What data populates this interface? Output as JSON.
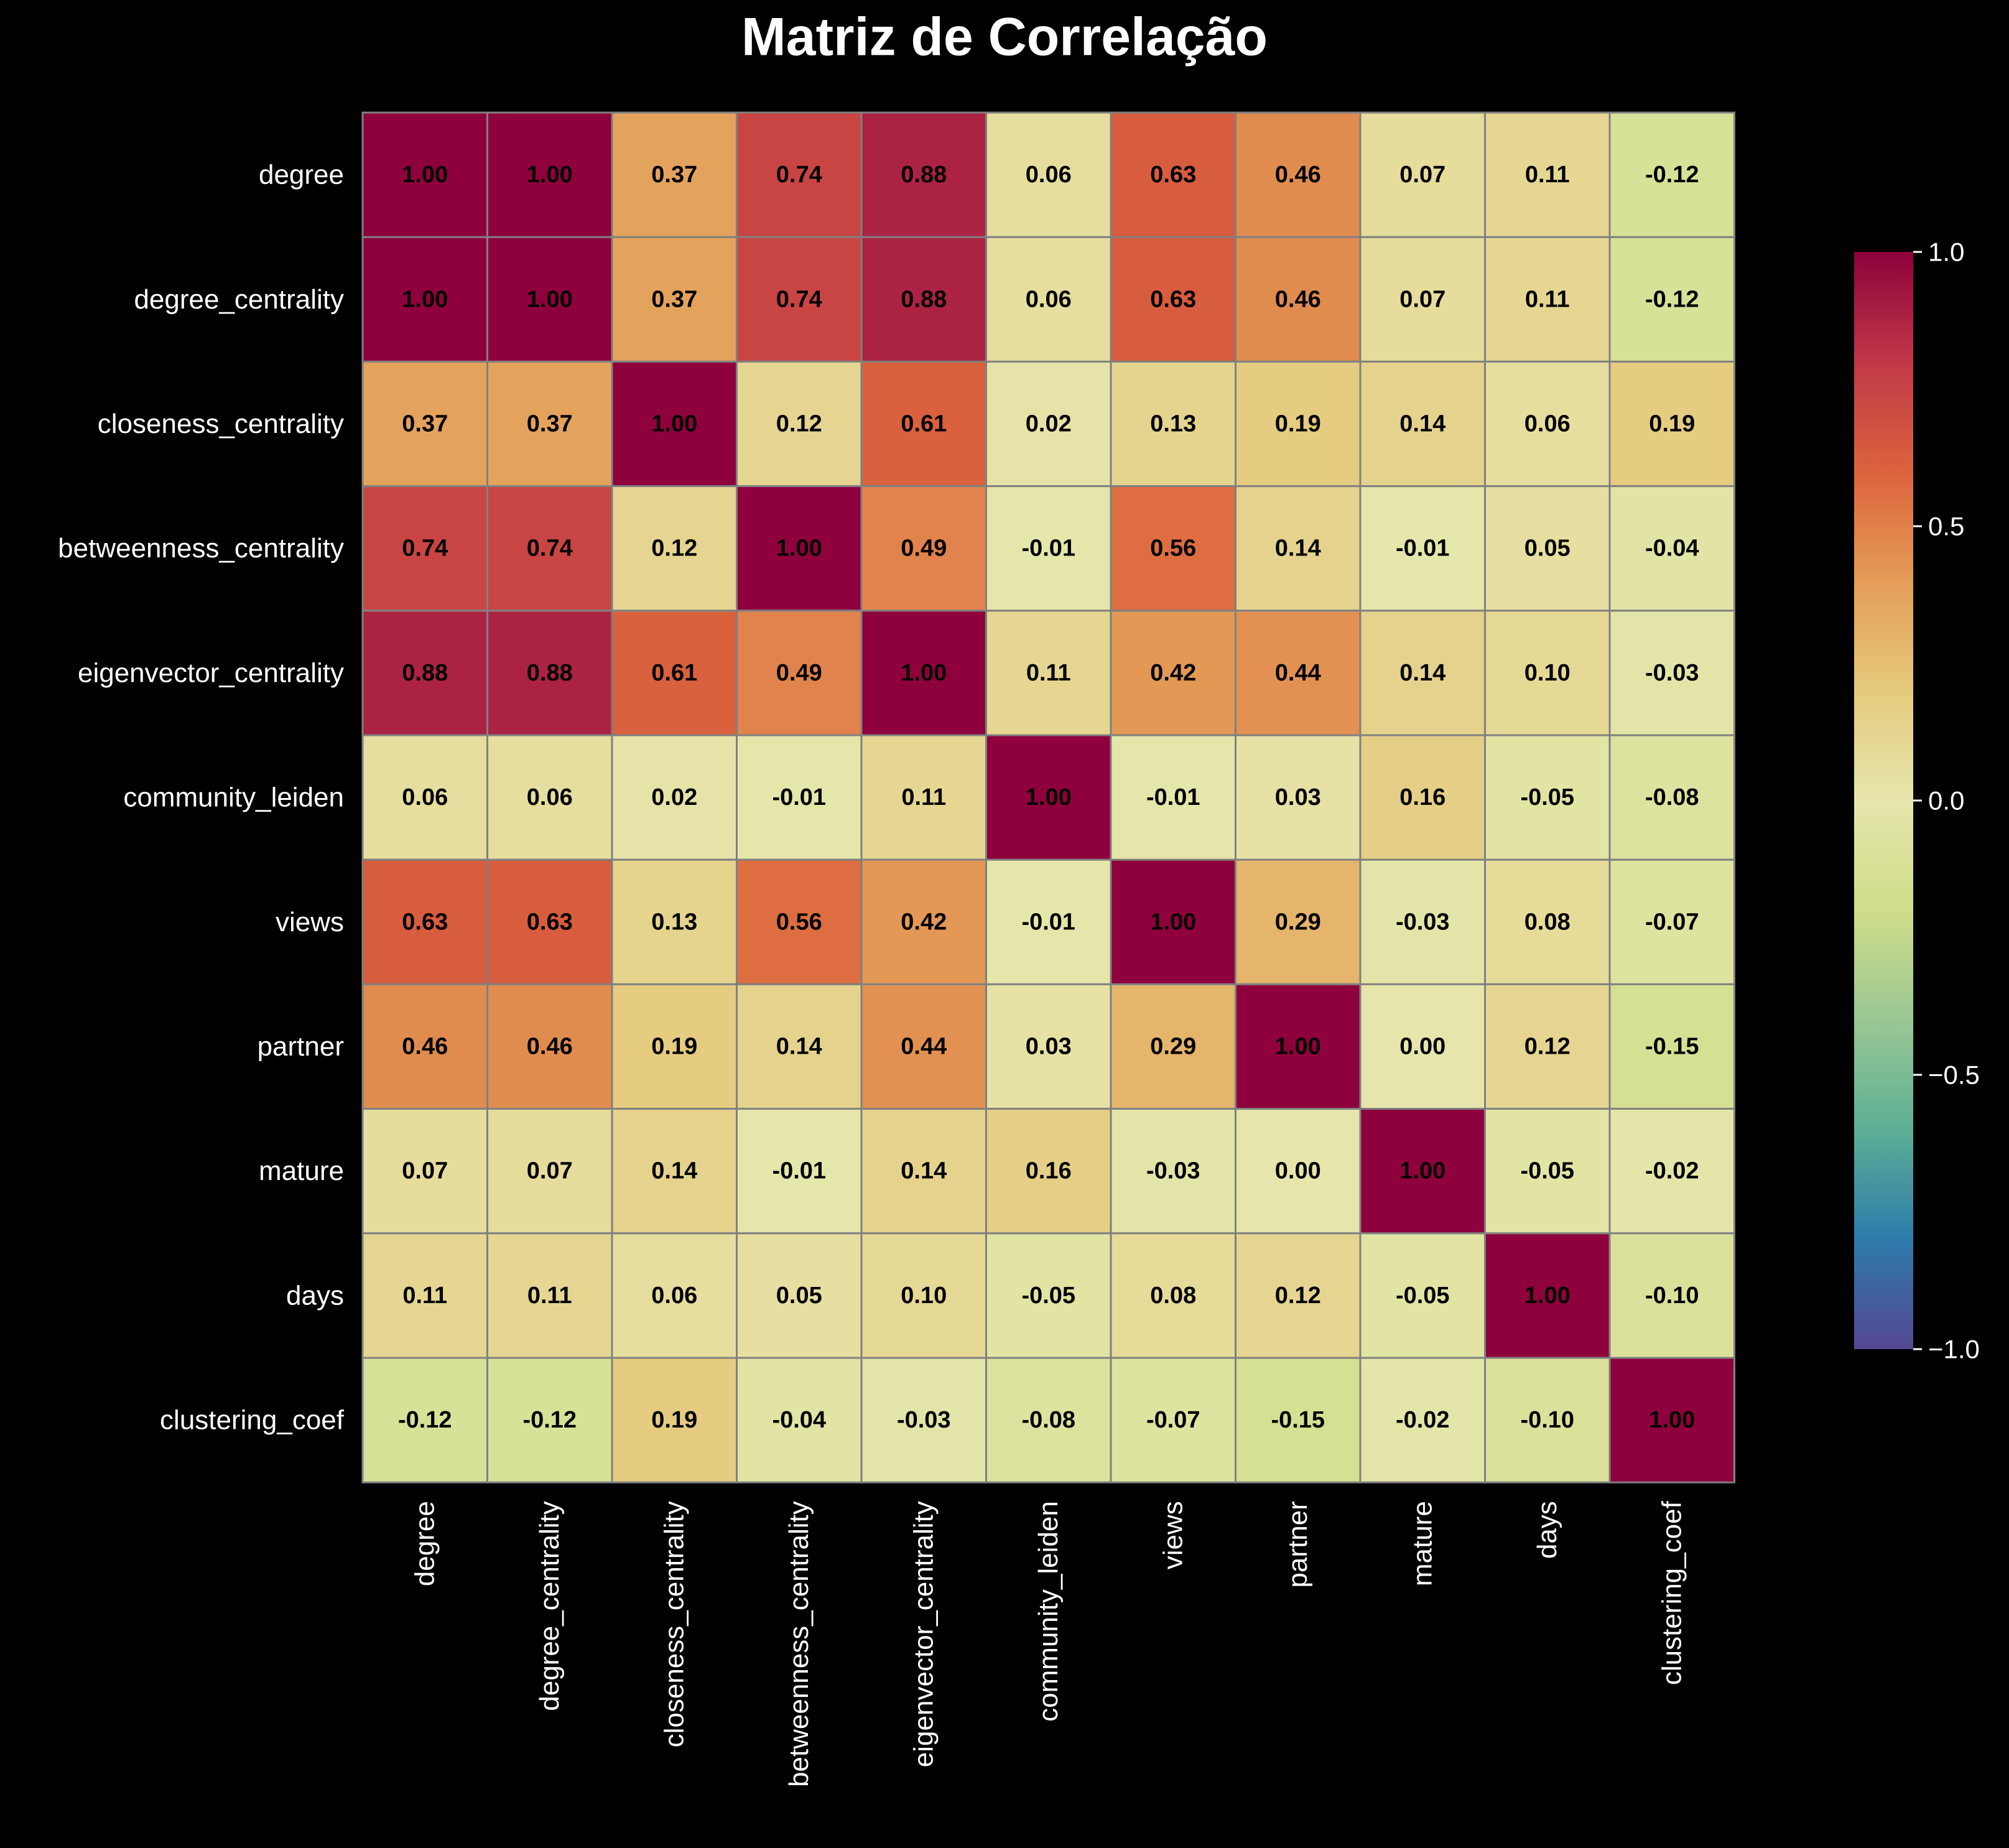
{
  "chart_data": {
    "type": "heatmap",
    "title": "Matriz de Correlação",
    "xlabel": "",
    "ylabel": "",
    "labels": [
      "degree",
      "degree_centrality",
      "closeness_centrality",
      "betweenness_centrality",
      "eigenvector_centrality",
      "community_leiden",
      "views",
      "partner",
      "mature",
      "days",
      "clustering_coef"
    ],
    "matrix": [
      [
        1.0,
        1.0,
        0.37,
        0.74,
        0.88,
        0.06,
        0.63,
        0.46,
        0.07,
        0.11,
        -0.12
      ],
      [
        1.0,
        1.0,
        0.37,
        0.74,
        0.88,
        0.06,
        0.63,
        0.46,
        0.07,
        0.11,
        -0.12
      ],
      [
        0.37,
        0.37,
        1.0,
        0.12,
        0.61,
        0.02,
        0.13,
        0.19,
        0.14,
        0.06,
        0.19
      ],
      [
        0.74,
        0.74,
        0.12,
        1.0,
        0.49,
        -0.01,
        0.56,
        0.14,
        -0.01,
        0.05,
        -0.04
      ],
      [
        0.88,
        0.88,
        0.61,
        0.49,
        1.0,
        0.11,
        0.42,
        0.44,
        0.14,
        0.1,
        -0.03
      ],
      [
        0.06,
        0.06,
        0.02,
        -0.01,
        0.11,
        1.0,
        -0.01,
        0.03,
        0.16,
        -0.05,
        -0.08
      ],
      [
        0.63,
        0.63,
        0.13,
        0.56,
        0.42,
        -0.01,
        1.0,
        0.29,
        -0.03,
        0.08,
        -0.07
      ],
      [
        0.46,
        0.46,
        0.19,
        0.14,
        0.44,
        0.03,
        0.29,
        1.0,
        0.0,
        0.12,
        -0.15
      ],
      [
        0.07,
        0.07,
        0.14,
        -0.01,
        0.14,
        0.16,
        -0.03,
        0.0,
        1.0,
        -0.05,
        -0.02
      ],
      [
        0.11,
        0.11,
        0.06,
        0.05,
        0.1,
        -0.05,
        0.08,
        0.12,
        -0.05,
        1.0,
        -0.1
      ],
      [
        -0.12,
        -0.12,
        0.19,
        -0.04,
        -0.03,
        -0.08,
        -0.07,
        -0.15,
        -0.02,
        -0.1,
        1.0
      ]
    ],
    "value_format": "2 decimals",
    "colormap": "Spectral_r",
    "vmin": -1.0,
    "vmax": 1.0,
    "grid": true,
    "colorbar": {
      "position": "right",
      "ticks": [
        1.0,
        0.5,
        0.0,
        -0.5,
        -1.0
      ],
      "tick_labels": [
        "1.0",
        "0.5",
        "0.0",
        "−0.5",
        "−1.0"
      ]
    },
    "colors": {
      "background": "#000000",
      "cell_border": "#808080",
      "text": "#ffffff",
      "cell_text": "#000000"
    }
  }
}
